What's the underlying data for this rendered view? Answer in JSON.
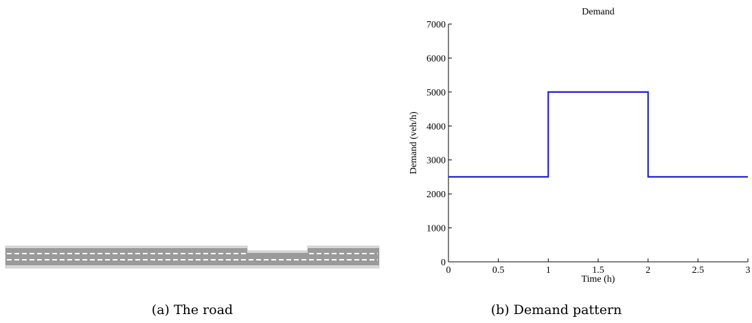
{
  "captions": {
    "road": "(a) The road",
    "demand": "(b) Demand pattern"
  },
  "colors": {
    "series": "#1f1fd6",
    "road_surface": "#9a9a9a",
    "road_edge": "#d8d8d8",
    "lane_marking": "#ffffff"
  },
  "chart_data": {
    "type": "line",
    "title": "Demand",
    "xlabel": "Time (h)",
    "ylabel": "Demand (veh/h)",
    "xlim": [
      0,
      3
    ],
    "ylim": [
      0,
      7000
    ],
    "xticks": [
      0,
      0.5,
      1,
      1.5,
      2,
      2.5,
      3
    ],
    "xtick_labels": [
      "0",
      "0.5",
      "1",
      "1.5",
      "2",
      "2.5",
      "3"
    ],
    "yticks": [
      0,
      1000,
      2000,
      3000,
      4000,
      5000,
      6000,
      7000
    ],
    "ytick_labels": [
      "0",
      "1000",
      "2000",
      "3000",
      "4000",
      "5000",
      "6000",
      "7000"
    ],
    "grid": false,
    "series": [
      {
        "x": [
          0,
          1,
          1,
          2,
          2,
          3
        ],
        "y": [
          2500,
          2500,
          5000,
          5000,
          2500,
          2500
        ]
      }
    ]
  }
}
